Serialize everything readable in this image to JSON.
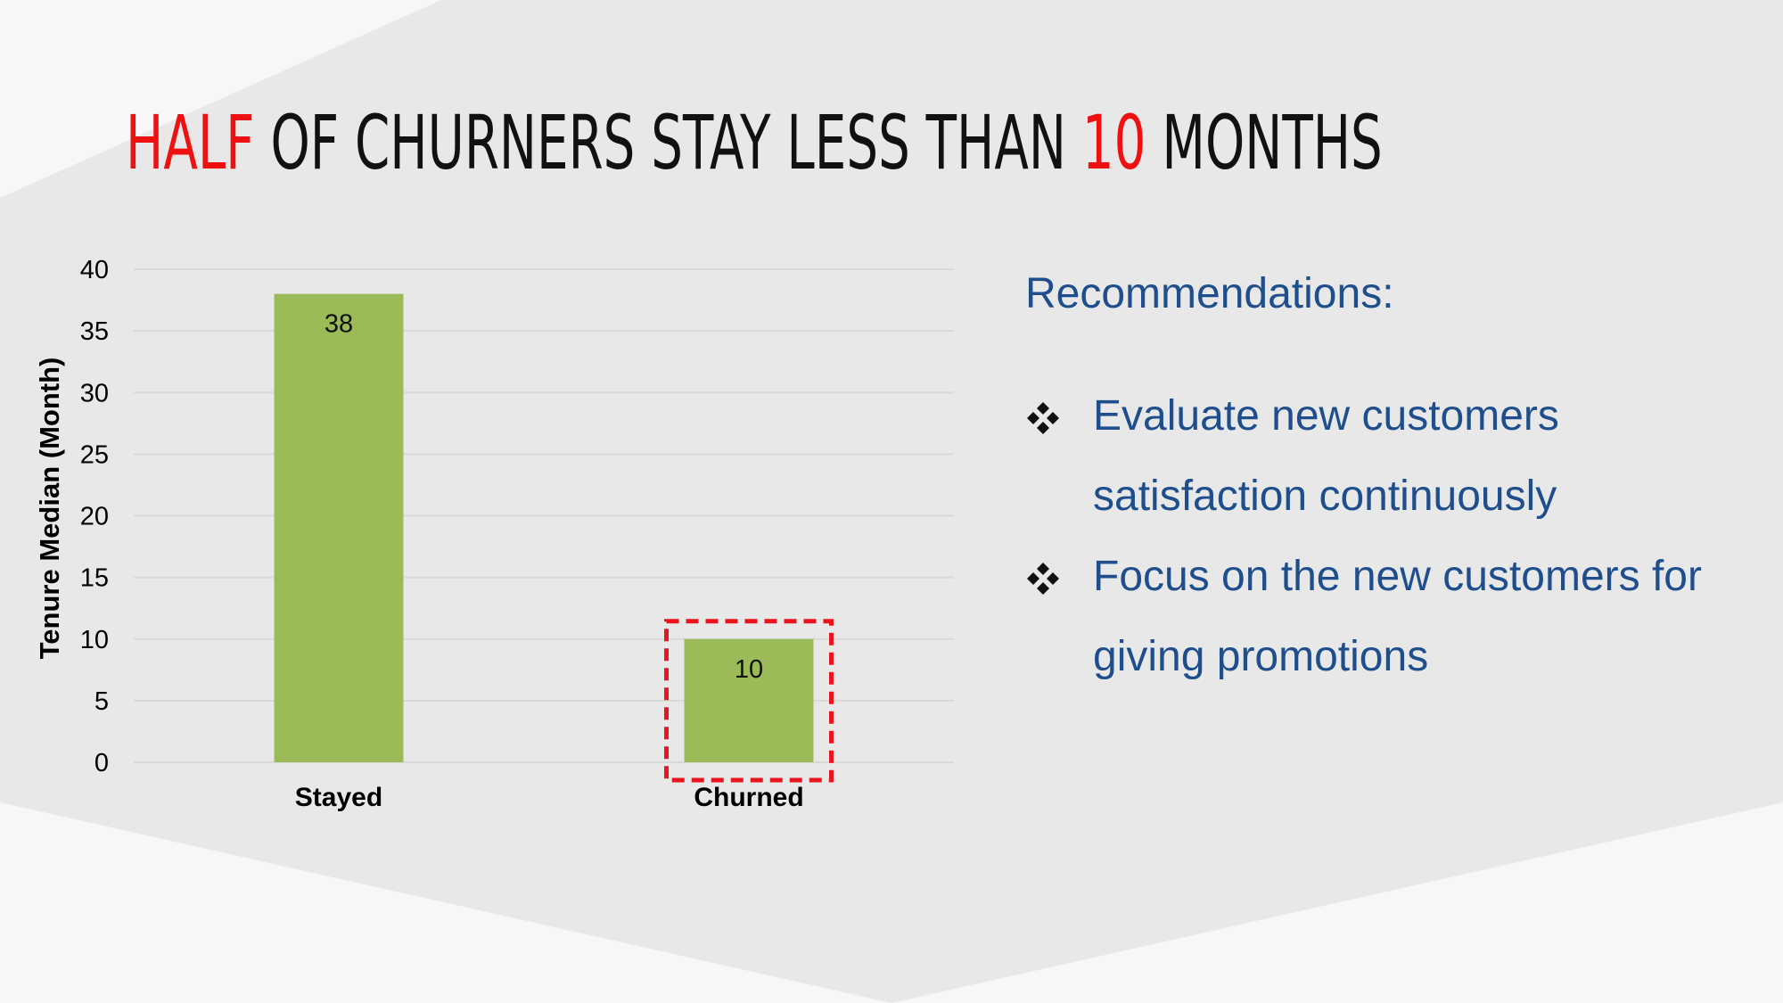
{
  "slide": {
    "title_parts": [
      {
        "text": "HALF",
        "accent": true
      },
      {
        "text": " OF CHURNERS STAY LESS THAN ",
        "accent": false
      },
      {
        "text": "10",
        "accent": true
      },
      {
        "text": " MONTHS",
        "accent": false
      }
    ],
    "colors": {
      "accent": "#ee1111",
      "title": "#111111",
      "recommendations": "#1f4e8c",
      "bar": "#9bbb59",
      "highlight_box": "#e8141e",
      "background": "#f7f7f7",
      "shape": "#e8e8e8"
    }
  },
  "chart_data": {
    "type": "bar",
    "categories": [
      "Stayed",
      "Churned"
    ],
    "values": [
      38,
      10
    ],
    "data_labels": [
      "38",
      "10"
    ],
    "ylabel": "Tenure Median (Month)",
    "xlabel": "",
    "ylim": [
      0,
      40
    ],
    "yticks": [
      0,
      5,
      10,
      15,
      20,
      25,
      30,
      35,
      40
    ],
    "grid": true,
    "legend": "none",
    "highlighted_category": "Churned"
  },
  "recommendations": {
    "heading": "Recommendations:",
    "bullet_icon": "four-diamond-icon",
    "items": [
      "Evaluate new customers satisfaction continuously",
      "Focus on the new customers for giving promotions"
    ]
  }
}
